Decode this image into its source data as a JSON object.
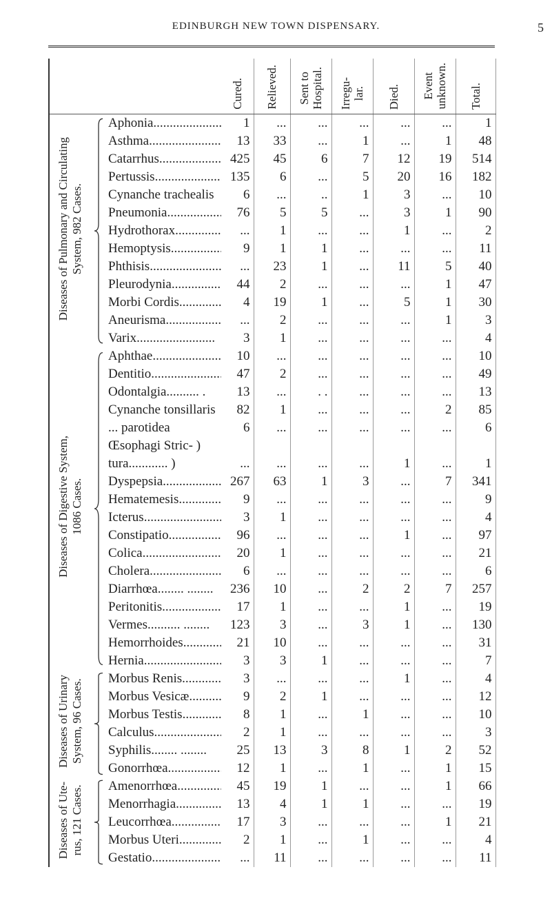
{
  "header": {
    "running_head": "EDINBURGH NEW TOWN DISPENSARY.",
    "page_number": "5"
  },
  "table": {
    "columns": [
      [
        "Cured."
      ],
      [
        "Relieved."
      ],
      [
        "Sent to",
        "Hospital."
      ],
      [
        "Irregu-",
        "lar."
      ],
      [
        "Died."
      ],
      [
        "Event",
        "unknown."
      ],
      [
        "Total."
      ]
    ],
    "groups": [
      {
        "label": [
          "Diseases of Pulmonary and Circulating",
          "System, 982 Cases."
        ],
        "rows": [
          {
            "name": [
              "Aphonia........................"
            ],
            "cells": [
              1,
              "...",
              "...",
              "...",
              "...",
              "...",
              1
            ]
          },
          {
            "name": [
              "Asthma........................"
            ],
            "cells": [
              13,
              33,
              "...",
              1,
              "...",
              1,
              48
            ]
          },
          {
            "name": [
              "Catarrhus........................"
            ],
            "cells": [
              425,
              45,
              6,
              7,
              12,
              19,
              514
            ]
          },
          {
            "name": [
              "Pertussis........................"
            ],
            "cells": [
              135,
              6,
              "...",
              5,
              20,
              16,
              182
            ]
          },
          {
            "name": [
              "Cynanche trachealis"
            ],
            "cells": [
              6,
              "...",
              "..",
              1,
              3,
              "...",
              10
            ]
          },
          {
            "name": [
              "Pneumonia........................"
            ],
            "cells": [
              76,
              5,
              5,
              "...",
              3,
              1,
              90
            ]
          },
          {
            "name": [
              "Hydrothorax........................"
            ],
            "cells": [
              "...",
              1,
              "...",
              "...",
              1,
              "...",
              2
            ]
          },
          {
            "name": [
              "Hemoptysis........................"
            ],
            "cells": [
              9,
              1,
              1,
              "...",
              "...",
              "...",
              11
            ]
          },
          {
            "name": [
              "Phthisis........................"
            ],
            "cells": [
              "...",
              23,
              1,
              "...",
              11,
              5,
              40
            ]
          },
          {
            "name": [
              "Pleurodynia........................"
            ],
            "cells": [
              44,
              2,
              "...",
              "...",
              "...",
              1,
              47
            ]
          },
          {
            "name": [
              "Morbi Cordis........................"
            ],
            "cells": [
              4,
              19,
              1,
              "...",
              5,
              1,
              30
            ]
          },
          {
            "name": [
              "Aneurisma........................"
            ],
            "cells": [
              "...",
              2,
              "...",
              "...",
              "...",
              1,
              3
            ]
          },
          {
            "name": [
              "Varix........................"
            ],
            "cells": [
              3,
              1,
              "...",
              "...",
              "...",
              "...",
              4
            ]
          }
        ]
      },
      {
        "label": [
          "Diseases of Digestive System,",
          "1086 Cases."
        ],
        "rows": [
          {
            "name": [
              "Aphthae........................"
            ],
            "cells": [
              10,
              "...",
              "...",
              "...",
              "...",
              "...",
              10
            ]
          },
          {
            "name": [
              "Dentitio........................"
            ],
            "cells": [
              47,
              2,
              "...",
              "...",
              "...",
              "...",
              49
            ]
          },
          {
            "name": [
              "Odontalgia.......... ."
            ],
            "cells": [
              13,
              "...",
              ". .",
              "...",
              "...",
              "...",
              13
            ]
          },
          {
            "name": [
              "Cynanche tonsillaris"
            ],
            "cells": [
              82,
              1,
              "...",
              "...",
              "...",
              2,
              85
            ]
          },
          {
            "name": [
              "... parotidea"
            ],
            "cells": [
              6,
              "...",
              "...",
              "...",
              "...",
              "...",
              6
            ]
          },
          {
            "name": [
              "Œsophagi Stric- )",
              "tura............ )"
            ],
            "cells": [
              "...",
              "...",
              "...",
              "...",
              1,
              "...",
              1
            ]
          },
          {
            "name": [
              "Dyspepsia........................"
            ],
            "cells": [
              267,
              63,
              1,
              3,
              "...",
              7,
              341
            ]
          },
          {
            "name": [
              "Hematemesis........................"
            ],
            "cells": [
              9,
              "...",
              "...",
              "...",
              "...",
              "...",
              9
            ]
          },
          {
            "name": [
              "Icterus........................"
            ],
            "cells": [
              3,
              1,
              "...",
              "...",
              "...",
              "...",
              4
            ]
          },
          {
            "name": [
              "Constipatio........................"
            ],
            "cells": [
              96,
              "...",
              "...",
              "...",
              1,
              "...",
              97
            ]
          },
          {
            "name": [
              "Colica........................"
            ],
            "cells": [
              20,
              1,
              "...",
              "...",
              "...",
              "...",
              21
            ]
          },
          {
            "name": [
              "Cholera........................"
            ],
            "cells": [
              6,
              "...",
              "...",
              "...",
              "...",
              "...",
              6
            ]
          },
          {
            "name": [
              "Diarrhœa........ ........"
            ],
            "cells": [
              236,
              10,
              "...",
              2,
              2,
              7,
              257
            ]
          },
          {
            "name": [
              "Peritonitis........................"
            ],
            "cells": [
              17,
              1,
              "...",
              "...",
              1,
              "...",
              19
            ]
          },
          {
            "name": [
              "Vermes.......... ........"
            ],
            "cells": [
              123,
              3,
              "...",
              3,
              1,
              "...",
              130
            ]
          },
          {
            "name": [
              "Hemorrhoides........................"
            ],
            "cells": [
              21,
              10,
              "...",
              "...",
              "...",
              "...",
              31
            ]
          },
          {
            "name": [
              "Hernia........................"
            ],
            "cells": [
              3,
              3,
              1,
              "...",
              "...",
              "...",
              7
            ]
          }
        ]
      },
      {
        "label": [
          "Diseases of Urinary",
          "System, 96 Cases."
        ],
        "rows": [
          {
            "name": [
              "Morbus Renis........................"
            ],
            "cells": [
              3,
              "...",
              "...",
              "...",
              1,
              "...",
              4
            ]
          },
          {
            "name": [
              "Morbus Vesicæ........................"
            ],
            "cells": [
              9,
              2,
              1,
              "...",
              "...",
              "...",
              12
            ]
          },
          {
            "name": [
              "Morbus Testis........................"
            ],
            "cells": [
              8,
              1,
              "...",
              1,
              "...",
              "...",
              10
            ]
          },
          {
            "name": [
              "Calculus........................"
            ],
            "cells": [
              2,
              1,
              "...",
              "...",
              "...",
              "...",
              3
            ]
          },
          {
            "name": [
              "Syphilis........ ........"
            ],
            "cells": [
              25,
              13,
              3,
              8,
              1,
              2,
              52
            ]
          },
          {
            "name": [
              "Gonorrhœa........................"
            ],
            "cells": [
              12,
              1,
              "...",
              1,
              "...",
              1,
              15
            ]
          }
        ]
      },
      {
        "label": [
          "Diseases of Ute-",
          "rus, 121 Cases."
        ],
        "rows": [
          {
            "name": [
              "Amenorrhœa........................"
            ],
            "cells": [
              45,
              19,
              1,
              "...",
              "...",
              1,
              66
            ]
          },
          {
            "name": [
              "Menorrhagia........................"
            ],
            "cells": [
              13,
              4,
              1,
              1,
              "...",
              "...",
              19
            ]
          },
          {
            "name": [
              "Leucorrhœa........................"
            ],
            "cells": [
              17,
              3,
              "...",
              "...",
              "...",
              1,
              21
            ]
          },
          {
            "name": [
              "Morbus Uteri........................"
            ],
            "cells": [
              2,
              1,
              "...",
              1,
              "...",
              "...",
              4
            ]
          },
          {
            "name": [
              "Gestatio........................"
            ],
            "cells": [
              "...",
              11,
              "...",
              "...",
              "...",
              "...",
              11
            ]
          }
        ]
      }
    ]
  }
}
